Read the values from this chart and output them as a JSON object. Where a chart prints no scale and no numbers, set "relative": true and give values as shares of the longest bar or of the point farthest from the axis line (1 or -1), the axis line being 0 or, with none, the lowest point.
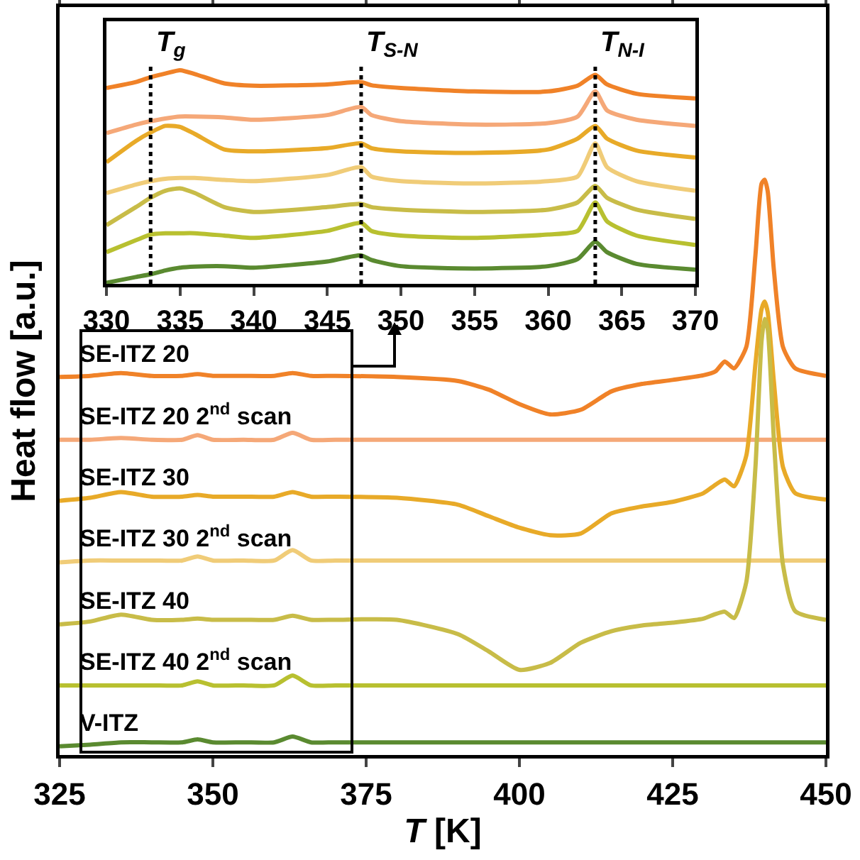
{
  "chart_data": [
    {
      "type": "line",
      "relative": true,
      "xlabel": "T [K]",
      "ylabel": "Heat flow [a.u.]",
      "xlim": [
        325,
        450
      ],
      "xticks": [
        325,
        350,
        375,
        400,
        425,
        450
      ],
      "x": [
        325,
        330,
        335,
        340,
        345,
        347.5,
        350,
        355,
        360,
        363,
        366,
        370,
        380,
        390,
        395,
        400,
        405,
        410,
        415,
        420,
        425,
        430,
        432,
        433.5,
        435,
        437,
        438.5,
        439.5,
        440,
        440.5,
        441.5,
        443,
        445,
        450
      ],
      "series": [
        {
          "name": "SE-ITZ 20",
          "color": "#f08228",
          "values": [
            0.657,
            0.659,
            0.664,
            0.659,
            0.659,
            0.662,
            0.659,
            0.659,
            0.659,
            0.664,
            0.659,
            0.659,
            0.657,
            0.65,
            0.635,
            0.61,
            0.592,
            0.6,
            0.632,
            0.645,
            0.652,
            0.66,
            0.667,
            0.684,
            0.672,
            0.709,
            0.869,
            0.993,
            1,
            0.98,
            0.844,
            0.709,
            0.672,
            0.659
          ]
        },
        {
          "name": "SE-ITZ 20 2$^{nd}$ scan",
          "color": "#f5a878",
          "values": [
            0.548,
            0.548,
            0.551,
            0.548,
            0.548,
            0.556,
            0.548,
            0.548,
            0.548,
            0.56,
            0.548,
            0.548,
            0.548,
            0.548,
            0.548,
            0.548,
            0.548,
            0.548,
            0.548,
            0.548,
            0.548,
            0.548,
            0.548,
            0.548,
            0.548,
            0.548,
            0.548,
            0.548,
            0.548,
            0.548,
            0.548,
            0.548,
            0.548,
            0.548
          ]
        },
        {
          "name": "SE-ITZ 30",
          "color": "#e8aa28",
          "values": [
            0.442,
            0.447,
            0.457,
            0.449,
            0.449,
            0.452,
            0.449,
            0.449,
            0.449,
            0.457,
            0.449,
            0.449,
            0.447,
            0.435,
            0.415,
            0.395,
            0.382,
            0.385,
            0.42,
            0.432,
            0.44,
            0.455,
            0.47,
            0.479,
            0.467,
            0.52,
            0.68,
            0.775,
            0.788,
            0.77,
            0.65,
            0.5,
            0.455,
            0.444
          ]
        },
        {
          "name": "SE-ITZ 30 2$^{nd}$ scan",
          "color": "#f0cc78",
          "values": [
            0.335,
            0.338,
            0.338,
            0.338,
            0.338,
            0.345,
            0.338,
            0.338,
            0.338,
            0.356,
            0.338,
            0.338,
            0.338,
            0.338,
            0.338,
            0.338,
            0.338,
            0.338,
            0.338,
            0.338,
            0.338,
            0.338,
            0.338,
            0.338,
            0.338,
            0.338,
            0.338,
            0.338,
            0.338,
            0.338,
            0.338,
            0.338,
            0.338,
            0.338
          ]
        },
        {
          "name": "SE-ITZ 40",
          "color": "#c8bc48",
          "values": [
            0.227,
            0.232,
            0.244,
            0.235,
            0.235,
            0.237,
            0.235,
            0.235,
            0.235,
            0.242,
            0.235,
            0.235,
            0.235,
            0.21,
            0.18,
            0.148,
            0.16,
            0.195,
            0.215,
            0.225,
            0.23,
            0.237,
            0.245,
            0.249,
            0.238,
            0.3,
            0.5,
            0.72,
            0.758,
            0.74,
            0.55,
            0.33,
            0.25,
            0.235
          ]
        },
        {
          "name": "SE-ITZ 40 2$^{nd}$ scan",
          "color": "#b8c030",
          "values": [
            0.121,
            0.121,
            0.121,
            0.121,
            0.121,
            0.128,
            0.121,
            0.121,
            0.121,
            0.138,
            0.121,
            0.121,
            0.121,
            0.121,
            0.121,
            0.121,
            0.121,
            0.121,
            0.121,
            0.121,
            0.121,
            0.121,
            0.121,
            0.121,
            0.121,
            0.121,
            0.121,
            0.121,
            0.121,
            0.121,
            0.121,
            0.121,
            0.121,
            0.121
          ]
        },
        {
          "name": "V-ITZ",
          "color": "#5a8a30",
          "values": [
            0.015,
            0.018,
            0.022,
            0.022,
            0.022,
            0.027,
            0.022,
            0.022,
            0.022,
            0.032,
            0.022,
            0.022,
            0.022,
            0.022,
            0.022,
            0.022,
            0.022,
            0.022,
            0.022,
            0.022,
            0.022,
            0.022,
            0.022,
            0.022,
            0.022,
            0.022,
            0.022,
            0.022,
            0.022,
            0.022,
            0.022,
            0.022,
            0.022,
            0.022
          ]
        }
      ]
    },
    {
      "type": "line",
      "relative": true,
      "xlim": [
        330,
        370
      ],
      "xticks": [
        330,
        335,
        340,
        345,
        350,
        355,
        360,
        365,
        370
      ],
      "x": [
        330,
        332,
        333,
        334,
        335,
        336,
        338,
        340,
        345,
        347.3,
        348,
        350,
        355,
        360,
        362,
        363.2,
        364,
        366,
        370
      ],
      "series": [
        {
          "color": "#f08228",
          "values": [
            0.916,
            0.944,
            0.967,
            0.984,
            1,
            0.982,
            0.938,
            0.927,
            0.933,
            0.944,
            0.929,
            0.916,
            0.9,
            0.9,
            0.927,
            0.978,
            0.933,
            0.889,
            0.867
          ]
        },
        {
          "color": "#f5a878",
          "values": [
            0.704,
            0.744,
            0.76,
            0.773,
            0.782,
            0.782,
            0.778,
            0.767,
            0.789,
            0.827,
            0.789,
            0.76,
            0.744,
            0.751,
            0.782,
            0.9,
            0.811,
            0.767,
            0.738
          ]
        },
        {
          "color": "#e8aa28",
          "values": [
            0.567,
            0.667,
            0.707,
            0.738,
            0.733,
            0.7,
            0.627,
            0.618,
            0.633,
            0.656,
            0.633,
            0.618,
            0.611,
            0.627,
            0.678,
            0.738,
            0.678,
            0.622,
            0.589
          ]
        },
        {
          "color": "#f0cc78",
          "values": [
            0.422,
            0.462,
            0.478,
            0.489,
            0.493,
            0.493,
            0.484,
            0.478,
            0.507,
            0.544,
            0.5,
            0.478,
            0.467,
            0.478,
            0.5,
            0.656,
            0.544,
            0.478,
            0.433
          ]
        },
        {
          "color": "#c8bc48",
          "values": [
            0.271,
            0.356,
            0.4,
            0.433,
            0.444,
            0.422,
            0.356,
            0.333,
            0.356,
            0.371,
            0.356,
            0.344,
            0.333,
            0.344,
            0.378,
            0.456,
            0.4,
            0.344,
            0.3
          ]
        },
        {
          "color": "#b8c030",
          "values": [
            0.144,
            0.2,
            0.227,
            0.233,
            0.233,
            0.233,
            0.222,
            0.211,
            0.244,
            0.282,
            0.244,
            0.222,
            0.211,
            0.227,
            0.244,
            0.378,
            0.289,
            0.222,
            0.178
          ]
        },
        {
          "color": "#5a8a30",
          "values": [
            0,
            0.027,
            0.04,
            0.058,
            0.071,
            0.076,
            0.078,
            0.071,
            0.1,
            0.129,
            0.107,
            0.078,
            0.067,
            0.078,
            0.111,
            0.193,
            0.144,
            0.089,
            0.062
          ]
        }
      ],
      "ref_lines": [
        {
          "axis": "x",
          "value": 333,
          "label": "T$_{g}$",
          "color": "#000000",
          "line_style": "dotted"
        },
        {
          "axis": "x",
          "value": 347.3,
          "label": "T$_{S-N}$",
          "color": "#000000",
          "line_style": "dotted"
        },
        {
          "axis": "x",
          "value": 363.2,
          "label": "T$_{N-I}$",
          "color": "#000000",
          "line_style": "dotted"
        }
      ]
    }
  ]
}
